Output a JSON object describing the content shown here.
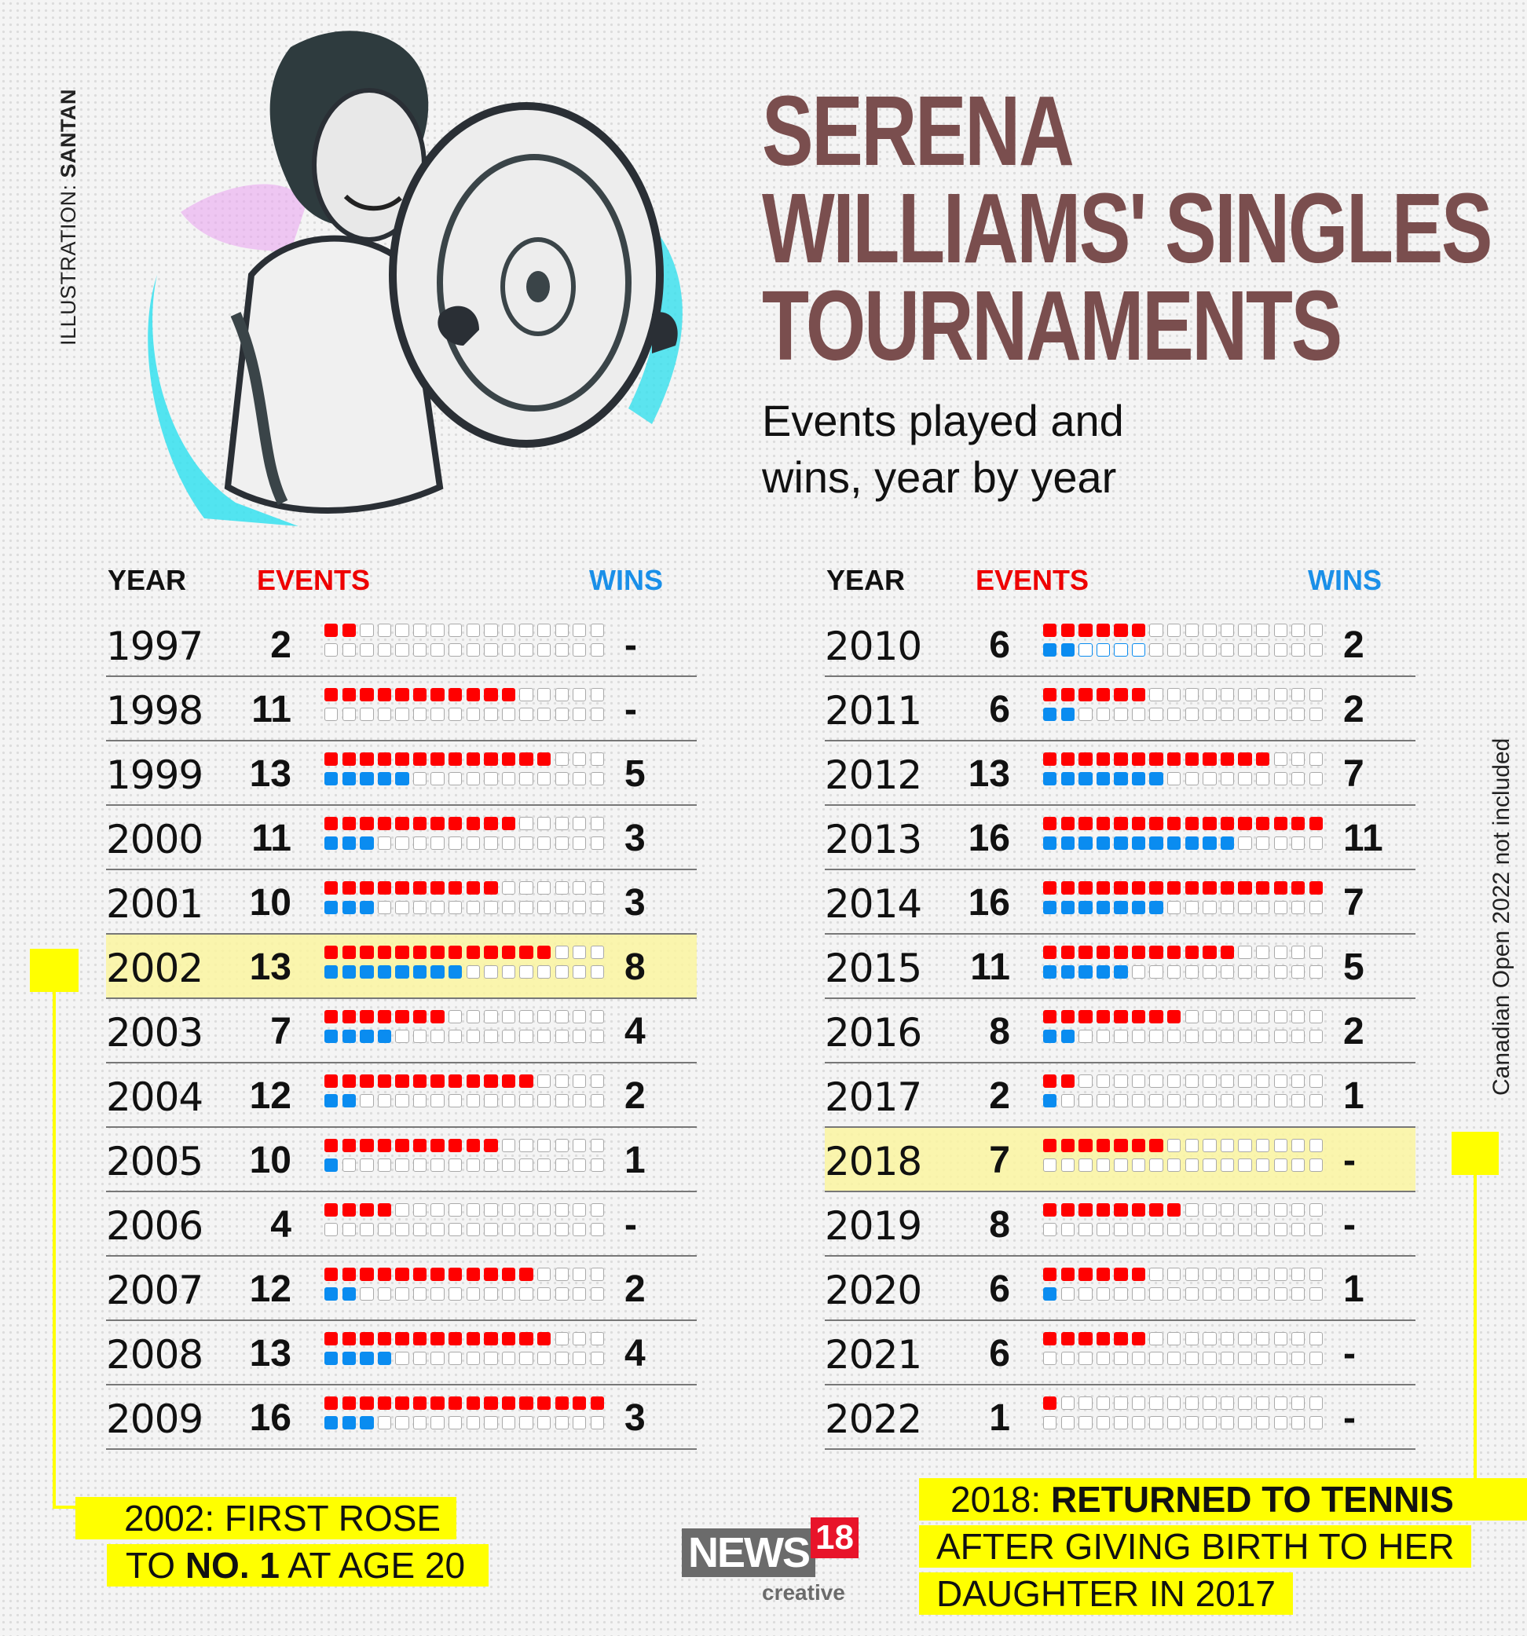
{
  "credit": {
    "prefix": "ILLUSTRATION: ",
    "name": "SANTAN"
  },
  "header": {
    "title_lines": [
      "SERENA",
      "WILLIAMS' SINGLES",
      "TOURNAMENTS"
    ],
    "subtitle_lines": [
      "Events played and",
      "wins, year by year"
    ]
  },
  "columns": {
    "year": "YEAR",
    "events": "EVENTS",
    "wins": "WINS"
  },
  "colors": {
    "title": "#7a4e4e",
    "events": "#ff0000",
    "wins": "#0a8cf0",
    "highlight": "#faf5a0",
    "annotation": "#ffff00",
    "empty_square_border": "#aaaaaa"
  },
  "grid_capacity": 16,
  "left_rows": [
    {
      "year": "1997",
      "events": "2",
      "wins": "-"
    },
    {
      "year": "1998",
      "events": "11",
      "wins": "-"
    },
    {
      "year": "1999",
      "events": "13",
      "wins": "5"
    },
    {
      "year": "2000",
      "events": "11",
      "wins": "3"
    },
    {
      "year": "2001",
      "events": "10",
      "wins": "3"
    },
    {
      "year": "2002",
      "events": "13",
      "wins": "8",
      "highlight": true
    },
    {
      "year": "2003",
      "events": "7",
      "wins": "4"
    },
    {
      "year": "2004",
      "events": "12",
      "wins": "2"
    },
    {
      "year": "2005",
      "events": "10",
      "wins": "1"
    },
    {
      "year": "2006",
      "events": "4",
      "wins": "-"
    },
    {
      "year": "2007",
      "events": "12",
      "wins": "2"
    },
    {
      "year": "2008",
      "events": "13",
      "wins": "4"
    },
    {
      "year": "2009",
      "events": "16",
      "wins": "3"
    }
  ],
  "right_rows": [
    {
      "year": "2010",
      "events": "6",
      "wins": "2",
      "blue_outline_to": 6
    },
    {
      "year": "2011",
      "events": "6",
      "wins": "2"
    },
    {
      "year": "2012",
      "events": "13",
      "wins": "7"
    },
    {
      "year": "2013",
      "events": "16",
      "wins": "11"
    },
    {
      "year": "2014",
      "events": "16",
      "wins": "7"
    },
    {
      "year": "2015",
      "events": "11",
      "wins": "5"
    },
    {
      "year": "2016",
      "events": "8",
      "wins": "2"
    },
    {
      "year": "2017",
      "events": "2",
      "wins": "1"
    },
    {
      "year": "2018",
      "events": "7",
      "wins": "-",
      "highlight": true
    },
    {
      "year": "2019",
      "events": "8",
      "wins": "-"
    },
    {
      "year": "2020",
      "events": "6",
      "wins": "1"
    },
    {
      "year": "2021",
      "events": "6",
      "wins": "-"
    },
    {
      "year": "2022",
      "events": "1",
      "wins": "-"
    }
  ],
  "side_note": "Canadian Open 2022 not included",
  "annotations": {
    "left": {
      "line1": "2002: FIRST ROSE",
      "line2_pre": "TO ",
      "line2_bold": "NO. 1",
      "line2_post": " AT AGE 20"
    },
    "right": {
      "line1_pre": "2018: ",
      "line1_bold": "RETURNED TO TENNIS",
      "line2": "AFTER GIVING BIRTH TO HER",
      "line3": "DAUGHTER IN 2017"
    }
  },
  "logo": {
    "news": "NEWS",
    "num": "18",
    "sub": "creative"
  },
  "chart_data": {
    "type": "table",
    "title": "Serena Williams' Singles Tournaments",
    "subtitle": "Events played and wins, year by year",
    "columns": [
      "Year",
      "Events",
      "Wins"
    ],
    "x": [
      "1997",
      "1998",
      "1999",
      "2000",
      "2001",
      "2002",
      "2003",
      "2004",
      "2005",
      "2006",
      "2007",
      "2008",
      "2009",
      "2010",
      "2011",
      "2012",
      "2013",
      "2014",
      "2015",
      "2016",
      "2017",
      "2018",
      "2019",
      "2020",
      "2021",
      "2022"
    ],
    "series": [
      {
        "name": "Events",
        "values": [
          2,
          11,
          13,
          11,
          10,
          13,
          7,
          12,
          10,
          4,
          12,
          13,
          16,
          6,
          6,
          13,
          16,
          16,
          11,
          8,
          2,
          7,
          8,
          6,
          6,
          1
        ]
      },
      {
        "name": "Wins",
        "values": [
          0,
          0,
          5,
          3,
          3,
          8,
          4,
          2,
          1,
          0,
          2,
          4,
          3,
          2,
          2,
          7,
          11,
          7,
          5,
          2,
          1,
          0,
          0,
          1,
          0,
          0
        ]
      }
    ],
    "notes": [
      "'-' shown for zero wins",
      "2002: First rose to No. 1 at age 20",
      "2018: Returned to tennis after giving birth to her daughter in 2017",
      "Canadian Open 2022 not included"
    ],
    "legend": {
      "events_color": "#ff0000",
      "wins_color": "#0a8cf0"
    },
    "grid_max": 16
  }
}
